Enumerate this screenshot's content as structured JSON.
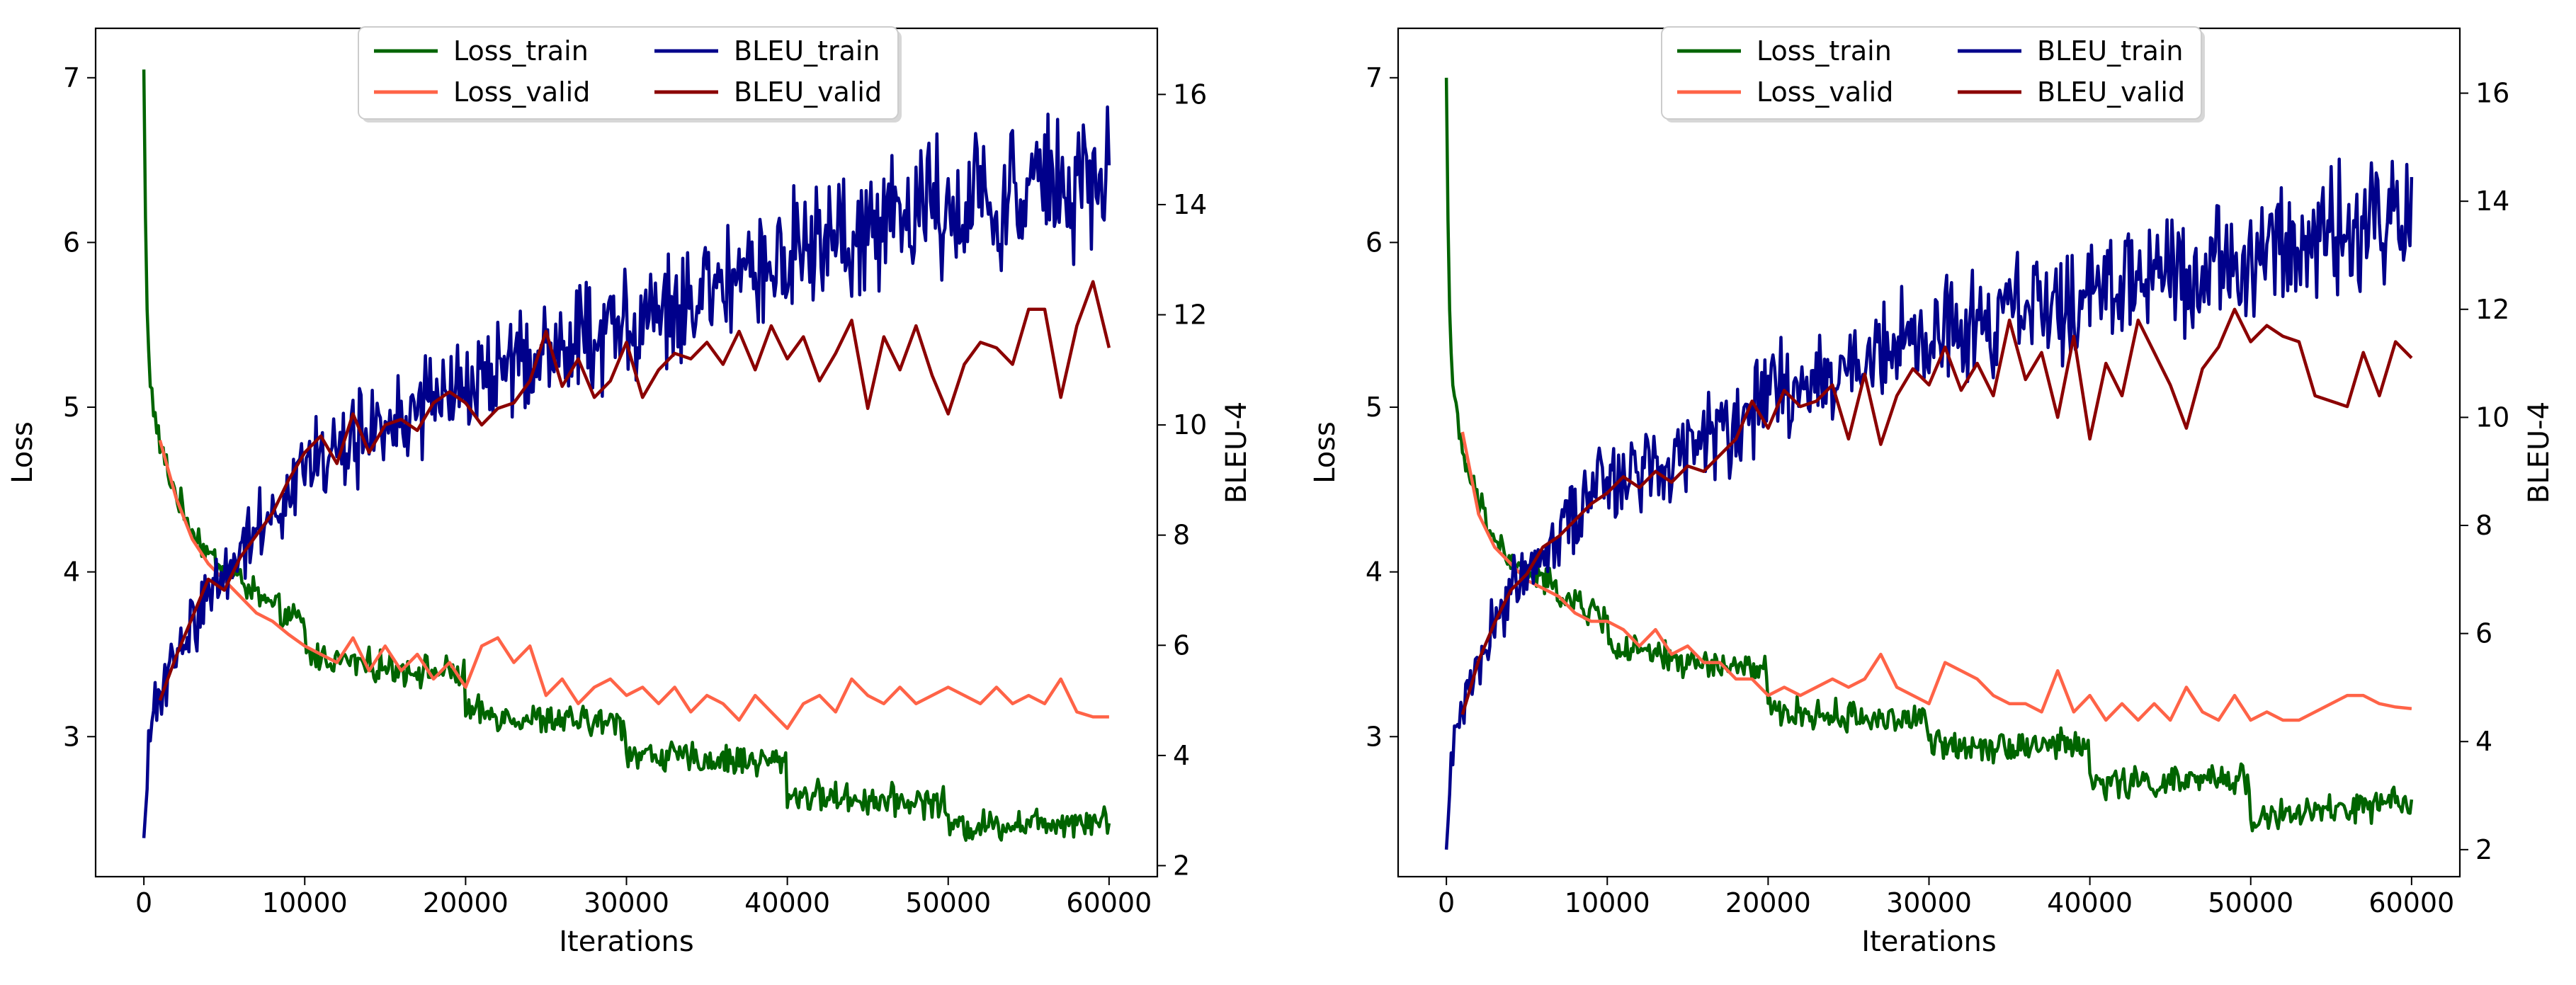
{
  "chart_data": [
    {
      "type": "line",
      "panel": "left",
      "xlabel": "Iterations",
      "ylabel": "Loss",
      "y2label": "BLEU-4",
      "xlim": [
        -3000,
        63000
      ],
      "ylim": [
        2.15,
        7.3
      ],
      "y2lim": [
        1.8,
        17.2
      ],
      "xticks": [
        0,
        10000,
        20000,
        30000,
        40000,
        50000,
        60000
      ],
      "yticks": [
        3,
        4,
        5,
        6,
        7
      ],
      "y2ticks": [
        2,
        4,
        6,
        8,
        10,
        12,
        14,
        16
      ],
      "legend": {
        "position": "top-center",
        "columns": 2
      },
      "series": [
        {
          "name": "Loss_train",
          "axis": "left",
          "color": "#006400",
          "kind": "train",
          "x": [
            0,
            150,
            400,
            800,
            1500,
            2500,
            4000,
            6000,
            8000,
            10000,
            10001,
            15000,
            19999,
            20000,
            25000,
            29999,
            30000,
            35000,
            39999,
            40000,
            45000,
            49999,
            50000,
            55000,
            60000
          ],
          "y": [
            7.05,
            5.7,
            5.15,
            4.85,
            4.6,
            4.35,
            4.1,
            3.95,
            3.78,
            3.68,
            3.5,
            3.42,
            3.38,
            3.15,
            3.1,
            3.08,
            2.9,
            2.86,
            2.85,
            2.65,
            2.62,
            2.6,
            2.45,
            2.48,
            2.5
          ],
          "noise": [
            0,
            0,
            0.05,
            0.06,
            0.07,
            0.07,
            0.07,
            0.07,
            0.07,
            0.07,
            0.07,
            0.07,
            0.07,
            0.07,
            0.07,
            0.07,
            0.07,
            0.07,
            0.07,
            0.07,
            0.07,
            0.07,
            0.07,
            0.07,
            0.07
          ]
        },
        {
          "name": "Loss_valid",
          "axis": "left",
          "color": "#FF6347",
          "kind": "valid",
          "x": [
            1000,
            2000,
            3000,
            4000,
            5000,
            6000,
            7000,
            8000,
            9000,
            10000,
            11000,
            12000,
            13000,
            14000,
            15000,
            16000,
            17000,
            18000,
            19000,
            20000,
            21000,
            22000,
            23000,
            24000,
            25000,
            26000,
            27000,
            28000,
            29000,
            30000,
            31000,
            32000,
            33000,
            34000,
            35000,
            36000,
            37000,
            38000,
            39000,
            40000,
            41000,
            42000,
            43000,
            44000,
            45000,
            46000,
            47000,
            48000,
            49000,
            50000,
            51000,
            52000,
            53000,
            54000,
            55000,
            56000,
            57000,
            58000,
            59000,
            60000
          ],
          "y": [
            4.8,
            4.45,
            4.2,
            4.05,
            3.95,
            3.85,
            3.75,
            3.7,
            3.62,
            3.55,
            3.5,
            3.45,
            3.6,
            3.4,
            3.55,
            3.4,
            3.5,
            3.35,
            3.45,
            3.3,
            3.55,
            3.6,
            3.45,
            3.55,
            3.25,
            3.35,
            3.2,
            3.3,
            3.35,
            3.25,
            3.3,
            3.2,
            3.3,
            3.15,
            3.25,
            3.2,
            3.1,
            3.25,
            3.15,
            3.05,
            3.2,
            3.25,
            3.15,
            3.35,
            3.25,
            3.2,
            3.3,
            3.2,
            3.25,
            3.3,
            3.25,
            3.2,
            3.3,
            3.2,
            3.25,
            3.2,
            3.35,
            3.15,
            3.12,
            3.12
          ]
        },
        {
          "name": "BLEU_train",
          "axis": "right",
          "color": "#00008B",
          "kind": "train",
          "x": [
            0,
            300,
            700,
            1500,
            3000,
            5000,
            8000,
            10000,
            15000,
            20000,
            25000,
            30000,
            35000,
            40000,
            45000,
            50000,
            55000,
            60000
          ],
          "y": [
            2.5,
            4.0,
            5.0,
            5.5,
            6.4,
            7.4,
            8.5,
            9.2,
            10.0,
            10.7,
            11.3,
            11.8,
            12.3,
            13.0,
            13.6,
            14.0,
            14.3,
            14.4
          ],
          "noise": [
            0,
            0.3,
            0.35,
            0.4,
            0.45,
            0.5,
            0.55,
            0.6,
            0.65,
            0.7,
            0.7,
            0.75,
            0.8,
            0.85,
            0.9,
            0.95,
            1.0,
            1.0
          ]
        },
        {
          "name": "BLEU_valid",
          "axis": "right",
          "color": "#8B0000",
          "kind": "valid",
          "x": [
            1000,
            2000,
            3000,
            4000,
            5000,
            6000,
            7000,
            8000,
            9000,
            10000,
            11000,
            12000,
            13000,
            14000,
            15000,
            16000,
            17000,
            18000,
            19000,
            20000,
            21000,
            22000,
            23000,
            24000,
            25000,
            26000,
            27000,
            28000,
            29000,
            30000,
            31000,
            32000,
            33000,
            34000,
            35000,
            36000,
            37000,
            38000,
            39000,
            40000,
            41000,
            42000,
            43000,
            44000,
            45000,
            46000,
            47000,
            48000,
            49000,
            50000,
            51000,
            52000,
            53000,
            54000,
            55000,
            56000,
            57000,
            58000,
            59000,
            60000
          ],
          "y": [
            5.0,
            5.8,
            6.5,
            7.2,
            7.0,
            7.6,
            8.0,
            8.4,
            9.0,
            9.5,
            9.8,
            9.3,
            10.2,
            9.5,
            10.0,
            10.1,
            9.9,
            10.4,
            10.6,
            10.4,
            10.0,
            10.3,
            10.4,
            10.8,
            11.7,
            10.7,
            11.2,
            10.5,
            10.8,
            11.5,
            10.5,
            11.0,
            11.3,
            11.2,
            11.5,
            11.1,
            11.7,
            11.0,
            11.8,
            11.2,
            11.6,
            10.8,
            11.3,
            11.9,
            10.3,
            11.6,
            11.0,
            11.8,
            10.9,
            10.2,
            11.1,
            11.5,
            11.4,
            11.1,
            12.1,
            12.1,
            10.5,
            11.8,
            12.6,
            11.4
          ]
        }
      ]
    },
    {
      "type": "line",
      "panel": "right",
      "xlabel": "Iterations",
      "ylabel": "Loss",
      "y2label": "BLEU-4",
      "xlim": [
        -3000,
        63000
      ],
      "ylim": [
        2.15,
        7.3
      ],
      "y2lim": [
        1.5,
        17.2
      ],
      "xticks": [
        0,
        10000,
        20000,
        30000,
        40000,
        50000,
        60000
      ],
      "yticks": [
        3,
        4,
        5,
        6,
        7
      ],
      "y2ticks": [
        2,
        4,
        6,
        8,
        10,
        12,
        14,
        16
      ],
      "legend": {
        "position": "top-center",
        "columns": 2
      },
      "series": [
        {
          "name": "Loss_train",
          "axis": "left",
          "color": "#006400",
          "kind": "train",
          "x": [
            0,
            150,
            400,
            800,
            1500,
            2500,
            4000,
            6000,
            8000,
            10000,
            10001,
            15000,
            19999,
            20000,
            25000,
            29999,
            30000,
            35000,
            39999,
            40000,
            45000,
            49999,
            50000,
            55000,
            60000
          ],
          "y": [
            7.0,
            5.7,
            5.15,
            4.8,
            4.55,
            4.3,
            4.05,
            3.95,
            3.8,
            3.72,
            3.55,
            3.45,
            3.4,
            3.15,
            3.12,
            3.1,
            2.95,
            2.95,
            2.95,
            2.72,
            2.72,
            2.75,
            2.5,
            2.55,
            2.6
          ],
          "noise": [
            0,
            0,
            0.05,
            0.06,
            0.07,
            0.07,
            0.07,
            0.07,
            0.07,
            0.07,
            0.07,
            0.07,
            0.07,
            0.07,
            0.07,
            0.07,
            0.07,
            0.07,
            0.07,
            0.07,
            0.07,
            0.07,
            0.07,
            0.07,
            0.07
          ]
        },
        {
          "name": "Loss_valid",
          "axis": "left",
          "color": "#FF6347",
          "kind": "valid",
          "x": [
            1000,
            2000,
            3000,
            4000,
            5000,
            6000,
            7000,
            8000,
            9000,
            10000,
            11000,
            12000,
            13000,
            14000,
            15000,
            16000,
            17000,
            18000,
            19000,
            20000,
            21000,
            22000,
            23000,
            24000,
            25000,
            26000,
            27000,
            28000,
            29000,
            30000,
            31000,
            32000,
            33000,
            34000,
            35000,
            36000,
            37000,
            38000,
            39000,
            40000,
            41000,
            42000,
            43000,
            44000,
            45000,
            46000,
            47000,
            48000,
            49000,
            50000,
            51000,
            52000,
            53000,
            54000,
            55000,
            56000,
            57000,
            58000,
            59000,
            60000
          ],
          "y": [
            4.85,
            4.35,
            4.15,
            4.05,
            3.95,
            3.9,
            3.85,
            3.75,
            3.7,
            3.7,
            3.65,
            3.55,
            3.65,
            3.5,
            3.55,
            3.45,
            3.45,
            3.35,
            3.35,
            3.25,
            3.3,
            3.25,
            3.3,
            3.35,
            3.3,
            3.35,
            3.5,
            3.3,
            3.25,
            3.2,
            3.45,
            3.4,
            3.35,
            3.25,
            3.2,
            3.2,
            3.15,
            3.4,
            3.15,
            3.25,
            3.1,
            3.2,
            3.1,
            3.2,
            3.1,
            3.3,
            3.15,
            3.1,
            3.25,
            3.1,
            3.15,
            3.1,
            3.1,
            3.15,
            3.2,
            3.25,
            3.25,
            3.2,
            3.18,
            3.17
          ]
        },
        {
          "name": "BLEU_train",
          "axis": "right",
          "color": "#00008B",
          "kind": "train",
          "x": [
            0,
            300,
            700,
            1500,
            3000,
            5000,
            8000,
            10000,
            15000,
            20000,
            25000,
            30000,
            35000,
            40000,
            45000,
            50000,
            55000,
            60000
          ],
          "y": [
            2.0,
            3.5,
            4.5,
            5.2,
            6.2,
            7.3,
            8.3,
            8.8,
            9.5,
            10.3,
            10.9,
            11.5,
            11.8,
            12.3,
            12.6,
            13.1,
            13.3,
            13.5
          ],
          "noise": [
            0,
            0.3,
            0.35,
            0.4,
            0.45,
            0.5,
            0.55,
            0.6,
            0.65,
            0.7,
            0.7,
            0.75,
            0.8,
            0.85,
            0.9,
            0.95,
            1.0,
            1.0
          ]
        },
        {
          "name": "BLEU_valid",
          "axis": "right",
          "color": "#8B0000",
          "kind": "valid",
          "x": [
            1000,
            2000,
            3000,
            4000,
            5000,
            6000,
            7000,
            8000,
            9000,
            10000,
            11000,
            12000,
            13000,
            14000,
            15000,
            16000,
            17000,
            18000,
            19000,
            20000,
            21000,
            22000,
            23000,
            24000,
            25000,
            26000,
            27000,
            28000,
            29000,
            30000,
            31000,
            32000,
            33000,
            34000,
            35000,
            36000,
            37000,
            38000,
            39000,
            40000,
            41000,
            42000,
            43000,
            44000,
            45000,
            46000,
            47000,
            48000,
            49000,
            50000,
            51000,
            52000,
            53000,
            54000,
            55000,
            56000,
            57000,
            58000,
            59000,
            60000
          ],
          "y": [
            4.5,
            5.5,
            6.2,
            6.8,
            7.1,
            7.6,
            7.8,
            8.1,
            8.4,
            8.6,
            8.9,
            8.7,
            9.0,
            8.8,
            9.1,
            9.0,
            9.3,
            9.6,
            10.3,
            9.8,
            10.5,
            10.2,
            10.3,
            10.6,
            9.6,
            10.8,
            9.5,
            10.4,
            10.9,
            10.6,
            11.3,
            10.5,
            11.0,
            10.4,
            11.8,
            10.7,
            11.2,
            10.0,
            11.5,
            9.6,
            11.0,
            10.4,
            11.8,
            11.2,
            10.6,
            9.8,
            10.9,
            11.3,
            12.0,
            11.4,
            11.7,
            11.5,
            11.4,
            10.4,
            10.3,
            10.2,
            11.2,
            10.4,
            11.4,
            11.1
          ]
        }
      ]
    }
  ]
}
